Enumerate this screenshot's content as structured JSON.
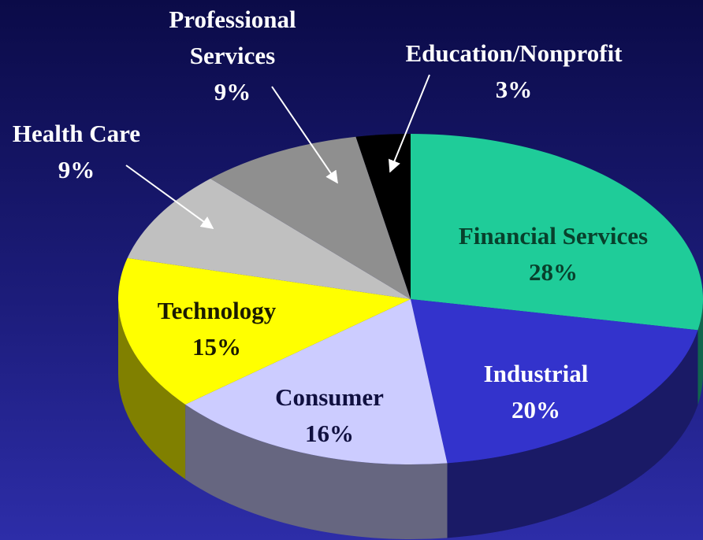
{
  "chart_data": {
    "type": "pie",
    "categories": [
      "Financial Services",
      "Industrial",
      "Consumer",
      "Technology",
      "Health Care",
      "Professional Services",
      "Education/Nonprofit"
    ],
    "values": [
      28,
      20,
      16,
      15,
      9,
      9,
      3
    ],
    "value_labels": [
      "28%",
      "20%",
      "16%",
      "15%",
      "9%",
      "9%",
      "3%"
    ],
    "colors": [
      "#1fcc99",
      "#3333cc",
      "#ccccff",
      "#ffff00",
      "#c0c0c0",
      "#8f8f8f",
      "#000000"
    ]
  }
}
